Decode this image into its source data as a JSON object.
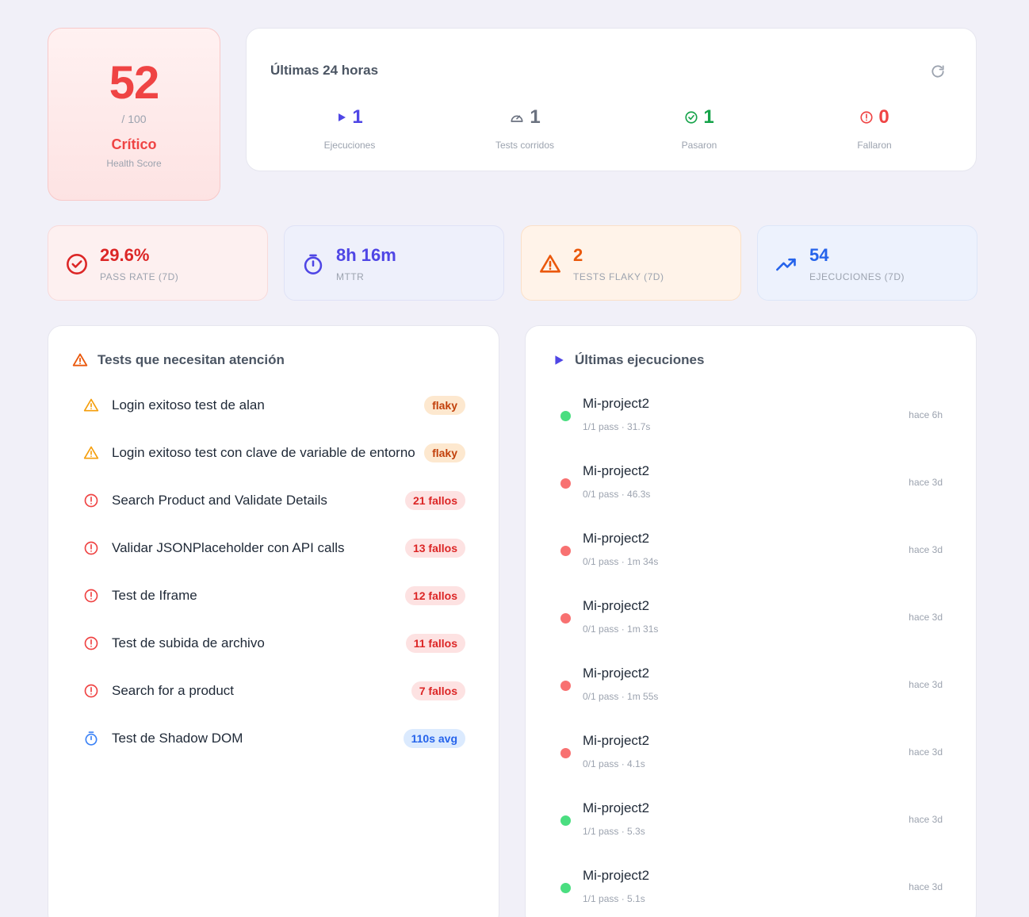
{
  "health": {
    "score": "52",
    "out_of": "/ 100",
    "status": "Crítico",
    "label": "Health Score"
  },
  "last24": {
    "title": "Últimas 24 horas",
    "stats": [
      {
        "value": "1",
        "label": "Ejecuciones",
        "color": "#4f46e5",
        "icon": "play-icon"
      },
      {
        "value": "1",
        "label": "Tests corridos",
        "color": "#6b7280",
        "icon": "gauge-icon"
      },
      {
        "value": "1",
        "label": "Pasaron",
        "color": "#16a34a",
        "icon": "check-circle-icon"
      },
      {
        "value": "0",
        "label": "Fallaron",
        "color": "#ef4444",
        "icon": "alert-circle-icon"
      }
    ]
  },
  "kpis": [
    {
      "value": "29.6%",
      "label": "PASS RATE (7D)",
      "color": "#dc2626",
      "bg": "#fdf0f0",
      "border": "#f8dada",
      "icon": "check-circle-icon"
    },
    {
      "value": "8h 16m",
      "label": "MTTR",
      "color": "#4f46e5",
      "bg": "#eef0fb",
      "border": "#dfe2f6",
      "icon": "stopwatch-icon"
    },
    {
      "value": "2",
      "label": "TESTS FLAKY (7D)",
      "color": "#ea580c",
      "bg": "#fff3e9",
      "border": "#fbe0c8",
      "icon": "warning-icon"
    },
    {
      "value": "54",
      "label": "EJECUCIONES (7D)",
      "color": "#2563eb",
      "bg": "#edf2fd",
      "border": "#dde6f8",
      "icon": "trending-up-icon"
    }
  ],
  "attention": {
    "title": "Tests que necesitan atención",
    "items": [
      {
        "name": "Login exitoso test de alan",
        "badge": "flaky",
        "kind": "flaky"
      },
      {
        "name": "Login exitoso test con clave de variable de entorno",
        "badge": "flaky",
        "kind": "flaky"
      },
      {
        "name": "Search Product and Validate Details",
        "badge": "21 fallos",
        "kind": "fail"
      },
      {
        "name": "Validar JSONPlaceholder con API calls",
        "badge": "13 fallos",
        "kind": "fail"
      },
      {
        "name": "Test de Iframe",
        "badge": "12 fallos",
        "kind": "fail"
      },
      {
        "name": "Test de subida de archivo",
        "badge": "11 fallos",
        "kind": "fail"
      },
      {
        "name": "Search for a product",
        "badge": "7 fallos",
        "kind": "fail"
      },
      {
        "name": "Test de Shadow DOM",
        "badge": "110s avg",
        "kind": "slow"
      }
    ]
  },
  "executions": {
    "title": "Últimas ejecuciones",
    "items": [
      {
        "project": "Mi-project2",
        "meta": "1/1 pass · 31.7s",
        "ago": "hace 6h",
        "status": "pass"
      },
      {
        "project": "Mi-project2",
        "meta": "0/1 pass · 46.3s",
        "ago": "hace 3d",
        "status": "fail"
      },
      {
        "project": "Mi-project2",
        "meta": "0/1 pass · 1m 34s",
        "ago": "hace 3d",
        "status": "fail"
      },
      {
        "project": "Mi-project2",
        "meta": "0/1 pass · 1m 31s",
        "ago": "hace 3d",
        "status": "fail"
      },
      {
        "project": "Mi-project2",
        "meta": "0/1 pass · 1m 55s",
        "ago": "hace 3d",
        "status": "fail"
      },
      {
        "project": "Mi-project2",
        "meta": "0/1 pass · 4.1s",
        "ago": "hace 3d",
        "status": "fail"
      },
      {
        "project": "Mi-project2",
        "meta": "1/1 pass · 5.3s",
        "ago": "hace 3d",
        "status": "pass"
      },
      {
        "project": "Mi-project2",
        "meta": "1/1 pass · 5.1s",
        "ago": "hace 3d",
        "status": "pass"
      }
    ]
  }
}
